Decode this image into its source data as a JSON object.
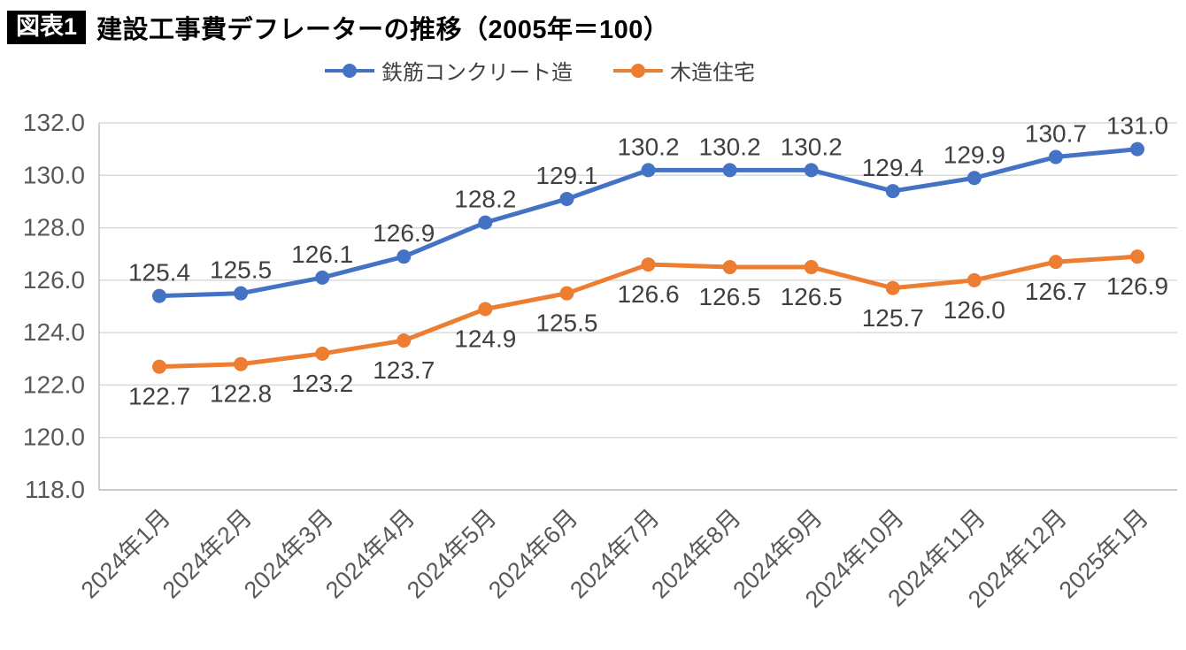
{
  "header": {
    "badge": "図表1",
    "title": "建設工事費デフレーターの推移（2005年＝100）"
  },
  "legend": {
    "items": [
      {
        "label": "鉄筋コンクリート造",
        "color": "#4472C4"
      },
      {
        "label": "木造住宅",
        "color": "#ED7D31"
      }
    ]
  },
  "chart_data": {
    "type": "line",
    "title": "建設工事費デフレーターの推移（2005年＝100）",
    "xlabel": "",
    "ylabel": "",
    "ylim": [
      118.0,
      132.0
    ],
    "yticks": [
      118.0,
      120.0,
      122.0,
      124.0,
      126.0,
      128.0,
      130.0,
      132.0
    ],
    "grid": true,
    "legend_position": "top",
    "categories": [
      "2024年1月",
      "2024年2月",
      "2024年3月",
      "2024年4月",
      "2024年5月",
      "2024年6月",
      "2024年7月",
      "2024年8月",
      "2024年9月",
      "2024年10月",
      "2024年11月",
      "2024年12月",
      "2025年1月"
    ],
    "series": [
      {
        "name": "鉄筋コンクリート造",
        "color": "#4472C4",
        "label_position": "above",
        "values": [
          125.4,
          125.5,
          126.1,
          126.9,
          128.2,
          129.1,
          130.2,
          130.2,
          130.2,
          129.4,
          129.9,
          130.7,
          131.0
        ]
      },
      {
        "name": "木造住宅",
        "color": "#ED7D31",
        "label_position": "below",
        "values": [
          122.7,
          122.8,
          123.2,
          123.7,
          124.9,
          125.5,
          126.6,
          126.5,
          126.5,
          125.7,
          126.0,
          126.7,
          126.9
        ]
      }
    ],
    "colors": {
      "grid": "#d9d9d9",
      "axis": "#bfbfbf",
      "tick_label": "#595959",
      "data_label": "#404040"
    }
  }
}
